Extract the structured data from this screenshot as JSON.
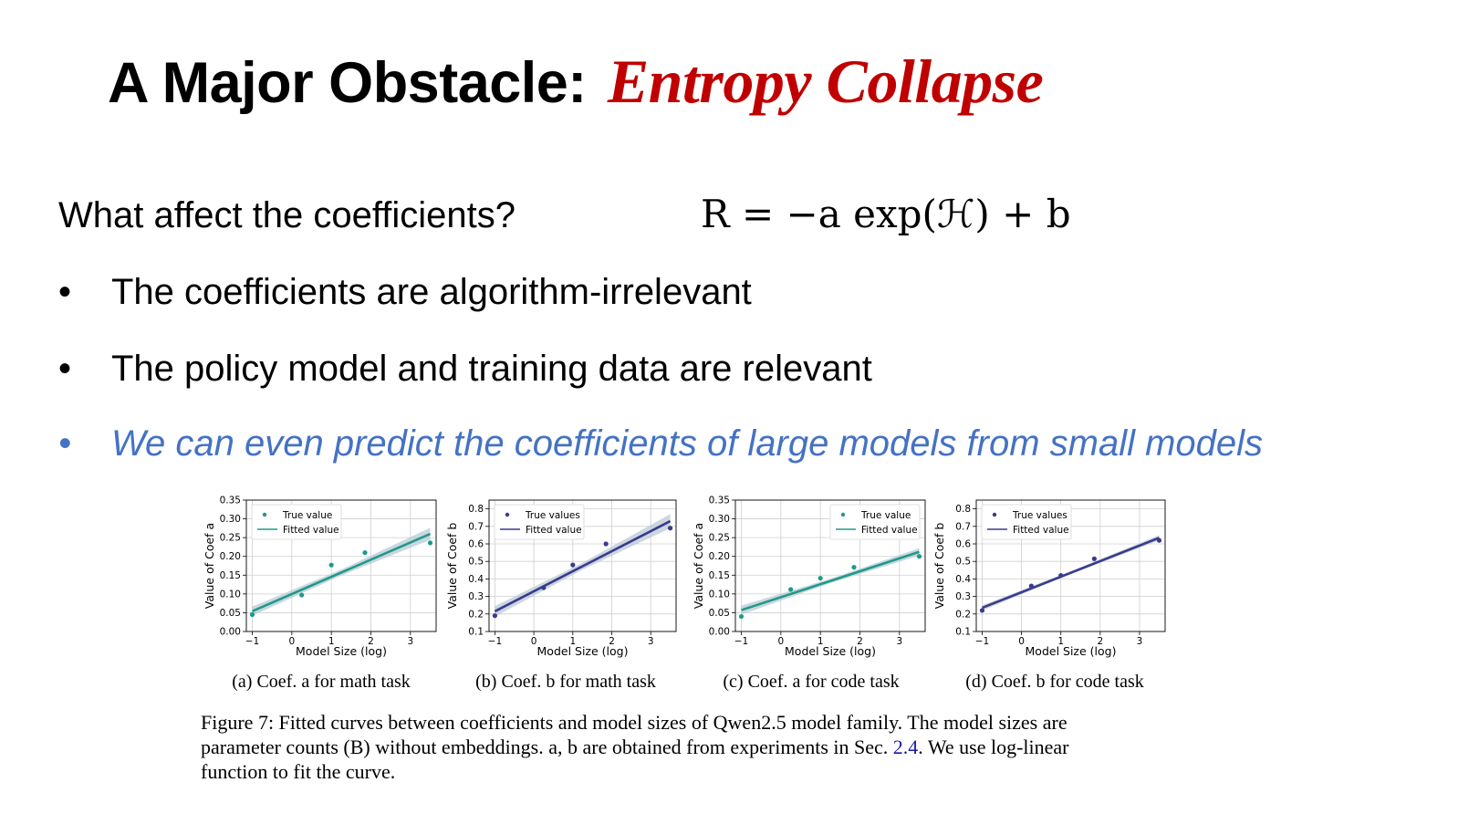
{
  "slide": {
    "title_plain": "A Major Obstacle:",
    "title_highlight": "Entropy Collapse",
    "question": "What affect the coefficients?",
    "formula": "R = −a exp(ℋ) + b",
    "bullets": [
      "The coefficients are algorithm-irrelevant",
      "The policy model and training data are relevant",
      "We can even predict the coefficients of large models from small models"
    ],
    "bullet_symbol": "•"
  },
  "captions": [
    "(a) Coef. a for math task",
    "(b) Coef. b for math task",
    "(c) Coef. a for code task",
    "(d) Coef. b for code task"
  ],
  "figure_caption": {
    "line1": "Figure 7: Fitted curves between coefficients and model sizes of Qwen2.5 model family. The model sizes are",
    "line2a": "parameter counts (B) without embeddings. a, b are obtained from experiments in Sec. ",
    "line2link": "2.4",
    "line2b": ". We use log-linear",
    "line3": "function to fit the curve."
  },
  "colors": {
    "title_highlight": "#c00000",
    "blue_bullet": "#4472c4",
    "teal": "#1f9a8a",
    "navy": "#3b3a8c",
    "band": "#b9c9d6"
  },
  "chart_data": [
    {
      "type": "scatter",
      "xlabel": "Model Size (log)",
      "ylabel": "Value of Coef a",
      "xlim": [
        -1.15,
        3.65
      ],
      "ylim": [
        0.0,
        0.35
      ],
      "xticks": [
        -1,
        0,
        1,
        2,
        3
      ],
      "yticks": [
        0.0,
        0.05,
        0.1,
        0.15,
        0.2,
        0.25,
        0.3,
        0.35
      ],
      "ytick_labels": [
        "0.00",
        "0.05",
        "0.10",
        "0.15",
        "0.20",
        "0.25",
        "0.30",
        "0.35"
      ],
      "legend": [
        "True value",
        "Fitted value"
      ],
      "legend_position": "top-left",
      "grid": true,
      "color": "teal",
      "points": {
        "x": [
          -1.0,
          0.25,
          1.0,
          1.85,
          3.5
        ],
        "y": [
          0.045,
          0.097,
          0.177,
          0.21,
          0.236
        ]
      },
      "fit": {
        "x": [
          -1.0,
          3.5
        ],
        "y": [
          0.054,
          0.26
        ]
      },
      "band_halfwidth": [
        0.012,
        0.008,
        0.016
      ]
    },
    {
      "type": "scatter",
      "xlabel": "Model Size (log)",
      "ylabel": "Value of Coef b",
      "xlim": [
        -1.15,
        3.65
      ],
      "ylim": [
        0.1,
        0.85
      ],
      "xticks": [
        -1,
        0,
        1,
        2,
        3
      ],
      "yticks": [
        0.1,
        0.2,
        0.3,
        0.4,
        0.5,
        0.6,
        0.7,
        0.8
      ],
      "ytick_labels": [
        "0.1",
        "0.2",
        "0.3",
        "0.4",
        "0.5",
        "0.6",
        "0.7",
        "0.8"
      ],
      "legend": [
        "True values",
        "Fitted value"
      ],
      "legend_position": "top-left",
      "grid": true,
      "color": "navy",
      "points": {
        "x": [
          -1.0,
          0.25,
          1.0,
          1.85,
          3.5
        ],
        "y": [
          0.19,
          0.35,
          0.48,
          0.6,
          0.69
        ]
      },
      "fit": {
        "x": [
          -1.0,
          3.5
        ],
        "y": [
          0.215,
          0.73
        ]
      },
      "band_halfwidth": [
        0.03,
        0.02,
        0.04
      ]
    },
    {
      "type": "scatter",
      "xlabel": "Model Size (log)",
      "ylabel": "Value of Coef a",
      "xlim": [
        -1.15,
        3.65
      ],
      "ylim": [
        0.0,
        0.35
      ],
      "xticks": [
        -1,
        0,
        1,
        2,
        3
      ],
      "yticks": [
        0.0,
        0.05,
        0.1,
        0.15,
        0.2,
        0.25,
        0.3,
        0.35
      ],
      "ytick_labels": [
        "0.00",
        "0.05",
        "0.10",
        "0.15",
        "0.20",
        "0.25",
        "0.30",
        "0.35"
      ],
      "legend": [
        "True value",
        "Fitted value"
      ],
      "legend_position": "top-right",
      "grid": true,
      "color": "teal",
      "points": {
        "x": [
          -1.0,
          0.25,
          1.0,
          1.85,
          3.5
        ],
        "y": [
          0.04,
          0.112,
          0.142,
          0.171,
          0.2
        ]
      },
      "fit": {
        "x": [
          -1.0,
          3.5
        ],
        "y": [
          0.057,
          0.212
        ]
      },
      "band_halfwidth": [
        0.012,
        0.006,
        0.01
      ]
    },
    {
      "type": "scatter",
      "xlabel": "Model Size (log)",
      "ylabel": "Value of Coef b",
      "xlim": [
        -1.15,
        3.65
      ],
      "ylim": [
        0.1,
        0.85
      ],
      "xticks": [
        -1,
        0,
        1,
        2,
        3
      ],
      "yticks": [
        0.1,
        0.2,
        0.3,
        0.4,
        0.5,
        0.6,
        0.7,
        0.8
      ],
      "ytick_labels": [
        "0.1",
        "0.2",
        "0.3",
        "0.4",
        "0.5",
        "0.6",
        "0.7",
        "0.8"
      ],
      "legend": [
        "True values",
        "Fitted value"
      ],
      "legend_position": "top-left",
      "grid": true,
      "color": "navy",
      "points": {
        "x": [
          -1.0,
          0.25,
          1.0,
          1.85,
          3.5
        ],
        "y": [
          0.22,
          0.36,
          0.42,
          0.515,
          0.62
        ]
      },
      "fit": {
        "x": [
          -1.0,
          3.5
        ],
        "y": [
          0.235,
          0.635
        ]
      },
      "band_halfwidth": [
        0.015,
        0.008,
        0.015
      ]
    }
  ]
}
